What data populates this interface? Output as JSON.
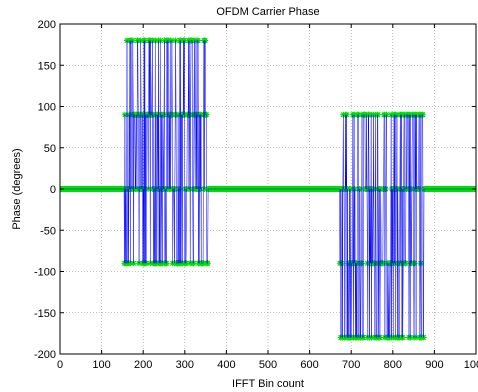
{
  "chart_data": {
    "type": "line",
    "title": "OFDM Carrier Phase",
    "xlabel": "IFFT Bin count",
    "ylabel": "Phase (degrees)",
    "xlim": [
      0,
      1000
    ],
    "ylim": [
      -200,
      200
    ],
    "xticks": [
      0,
      100,
      200,
      300,
      400,
      500,
      600,
      700,
      800,
      900,
      1000
    ],
    "xtick_labels": [
      "0",
      "100",
      "200",
      "300",
      "400",
      "500",
      "600",
      "700",
      "800",
      "900",
      "1000"
    ],
    "yticks": [
      200,
      150,
      100,
      50,
      0,
      -50,
      -100,
      -150,
      -200
    ],
    "ytick_labels": [
      "200",
      "150",
      "100",
      "50",
      "0",
      "-50",
      "-100",
      "-150",
      "-200"
    ],
    "grid": true,
    "grid_style": "dotted",
    "legend": false,
    "colors": {
      "line": "#0000ff",
      "marker": "#00e000",
      "grid": "#8c8c8c"
    },
    "series": [
      {
        "marker": "*",
        "description": "QPSK phases on active carriers, 0 elsewhere",
        "x_range": [
          0,
          1023
        ],
        "constant_value": 0,
        "active_bands": [
          {
            "x_range": [
              155,
              355
            ],
            "values": [
              180,
              90,
              -90,
              0
            ]
          },
          {
            "x_range": [
              670,
              875
            ],
            "values": [
              90,
              0,
              -90,
              -180
            ]
          }
        ]
      }
    ]
  }
}
